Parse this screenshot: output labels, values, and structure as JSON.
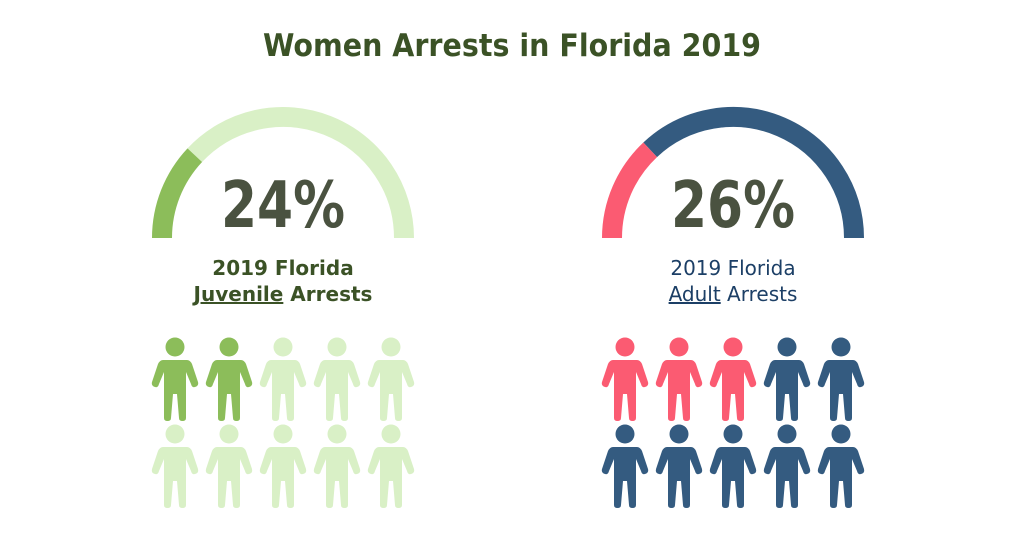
{
  "title": "Women Arrests in Florida 2019",
  "colors": {
    "title": "#3b5226",
    "percent_text": "#4a5240",
    "juvenile_accent": "#8cbd5a",
    "juvenile_light": "#d9f0c6",
    "juvenile_label": "#3b5226",
    "adult_accent": "#fb5b72",
    "adult_base": "#345b80",
    "adult_label": "#1c3f66"
  },
  "chart_data": [
    {
      "type": "gauge",
      "title": "2019 Florida Juvenile Arrests",
      "label_line1": "2019 Florida",
      "label_line2_underlined": "Juvenile",
      "label_line2_rest": " Arrests",
      "value": 24,
      "value_label": "24%",
      "range": [
        0,
        100
      ],
      "pictogram": {
        "total": 10,
        "highlighted": 2,
        "rows": 2,
        "cols": 5
      },
      "accent": "#8cbd5a",
      "base": "#d9f0c6"
    },
    {
      "type": "gauge",
      "title": "2019 Florida Adult Arrests",
      "label_line1": "2019 Florida",
      "label_line2_underlined": "Adult",
      "label_line2_rest": " Arrests",
      "value": 26,
      "value_label": "26%",
      "range": [
        0,
        100
      ],
      "pictogram": {
        "total": 10,
        "highlighted": 3,
        "rows": 2,
        "cols": 5
      },
      "accent": "#fb5b72",
      "base": "#345b80"
    }
  ]
}
